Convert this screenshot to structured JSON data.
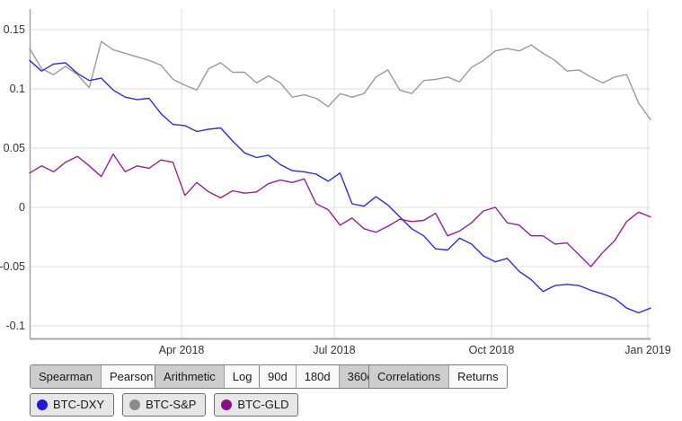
{
  "chart_data": {
    "type": "line",
    "title": "",
    "xlabel": "",
    "ylabel": "",
    "grid": true,
    "x_unit": "weekly samples, Jan 2018 to Jan 2019",
    "ylim": [
      -0.1106,
      0.1674
    ],
    "y_ticks": [
      {
        "label": "0.15",
        "value": 0.15
      },
      {
        "label": "0.1",
        "value": 0.1
      },
      {
        "label": "0.05",
        "value": 0.05
      },
      {
        "label": "0",
        "value": 0.0
      },
      {
        "label": "-0.05",
        "value": -0.05
      },
      {
        "label": "-0.1",
        "value": -0.1
      }
    ],
    "x_ticks": [
      {
        "label": "Apr 2018",
        "pos": 0.2446
      },
      {
        "label": "Jul 2018",
        "pos": 0.4906
      },
      {
        "label": "Oct 2018",
        "pos": 0.7438
      },
      {
        "label": "Jan 2019",
        "pos": 0.9957
      }
    ],
    "legend_position": "bottom",
    "series": [
      {
        "name": "BTC-S&P",
        "color": "#9a9a9a",
        "values": [
          0.134,
          0.117,
          0.112,
          0.119,
          0.112,
          0.101,
          0.14,
          0.133,
          0.13,
          0.127,
          0.124,
          0.12,
          0.108,
          0.103,
          0.099,
          0.117,
          0.122,
          0.114,
          0.114,
          0.105,
          0.111,
          0.105,
          0.093,
          0.095,
          0.092,
          0.085,
          0.096,
          0.093,
          0.096,
          0.11,
          0.116,
          0.099,
          0.096,
          0.107,
          0.108,
          0.11,
          0.106,
          0.118,
          0.124,
          0.132,
          0.134,
          0.132,
          0.137,
          0.13,
          0.124,
          0.115,
          0.116,
          0.11,
          0.105,
          0.11,
          0.112,
          0.088,
          0.074
        ]
      },
      {
        "name": "BTC-GLD",
        "color": "#8e258e",
        "values": [
          0.029,
          0.035,
          0.03,
          0.038,
          0.043,
          0.035,
          0.026,
          0.045,
          0.03,
          0.035,
          0.033,
          0.04,
          0.038,
          0.01,
          0.021,
          0.013,
          0.008,
          0.014,
          0.012,
          0.013,
          0.02,
          0.023,
          0.021,
          0.024,
          0.003,
          -0.002,
          -0.015,
          -0.009,
          -0.018,
          -0.021,
          -0.016,
          -0.01,
          -0.012,
          -0.011,
          -0.005,
          -0.024,
          -0.02,
          -0.013,
          -0.003,
          0.0,
          -0.013,
          -0.015,
          -0.024,
          -0.024,
          -0.031,
          -0.03,
          -0.04,
          -0.05,
          -0.038,
          -0.028,
          -0.012,
          -0.004,
          -0.008
        ]
      },
      {
        "name": "BTC-DXY",
        "color": "#2d2dd0",
        "values": [
          0.124,
          0.115,
          0.121,
          0.122,
          0.113,
          0.107,
          0.109,
          0.099,
          0.093,
          0.091,
          0.092,
          0.079,
          0.07,
          0.069,
          0.064,
          0.066,
          0.067,
          0.056,
          0.046,
          0.042,
          0.044,
          0.036,
          0.031,
          0.03,
          0.028,
          0.022,
          0.029,
          0.003,
          0.001,
          0.009,
          0.002,
          -0.008,
          -0.018,
          -0.024,
          -0.035,
          -0.036,
          -0.026,
          -0.031,
          -0.041,
          -0.046,
          -0.043,
          -0.054,
          -0.061,
          -0.071,
          -0.066,
          -0.065,
          -0.066,
          -0.07,
          -0.073,
          -0.077,
          -0.085,
          -0.089,
          -0.085
        ]
      }
    ]
  },
  "controls": {
    "groups": [
      {
        "name": "correlation-method",
        "buttons": [
          {
            "label": "Spearman",
            "selected": true
          },
          {
            "label": "Pearson",
            "selected": false
          }
        ]
      },
      {
        "name": "mean-type",
        "buttons": [
          {
            "label": "Arithmetic",
            "selected": true
          },
          {
            "label": "Log",
            "selected": false
          }
        ]
      },
      {
        "name": "window",
        "buttons": [
          {
            "label": "90d",
            "selected": false
          },
          {
            "label": "180d",
            "selected": false
          },
          {
            "label": "360d",
            "selected": true
          }
        ]
      },
      {
        "name": "view",
        "buttons": [
          {
            "label": "Correlations",
            "selected": true
          },
          {
            "label": "Returns",
            "selected": false
          }
        ]
      }
    ]
  },
  "legend": {
    "items": [
      {
        "label": "BTC-DXY",
        "color": "#2016e0"
      },
      {
        "label": "BTC-S&P",
        "color": "#8a8a8a"
      },
      {
        "label": "BTC-GLD",
        "color": "#8c0c8c"
      }
    ]
  },
  "style": {
    "grid_color": "#dcdcdc",
    "axis_color": "#a6a6a6",
    "tick_label_color": "#333333"
  }
}
